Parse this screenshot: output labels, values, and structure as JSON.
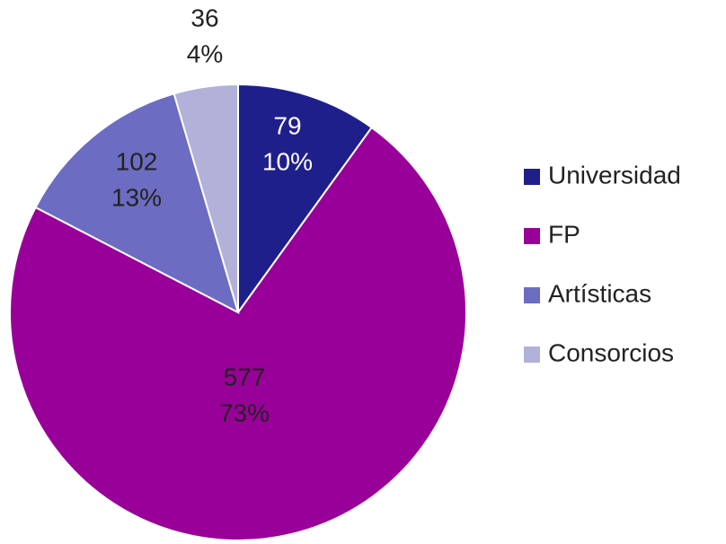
{
  "chart_data": {
    "type": "pie",
    "categories": [
      "Universidad",
      "FP",
      "Artísticas",
      "Consorcios"
    ],
    "values": [
      79,
      577,
      102,
      36
    ],
    "percent_labels": [
      "10%",
      "73%",
      "13%",
      "4%"
    ],
    "colors": [
      "#1f1f8c",
      "#990099",
      "#6c6cc2",
      "#b1b1da"
    ],
    "legend": "right"
  }
}
